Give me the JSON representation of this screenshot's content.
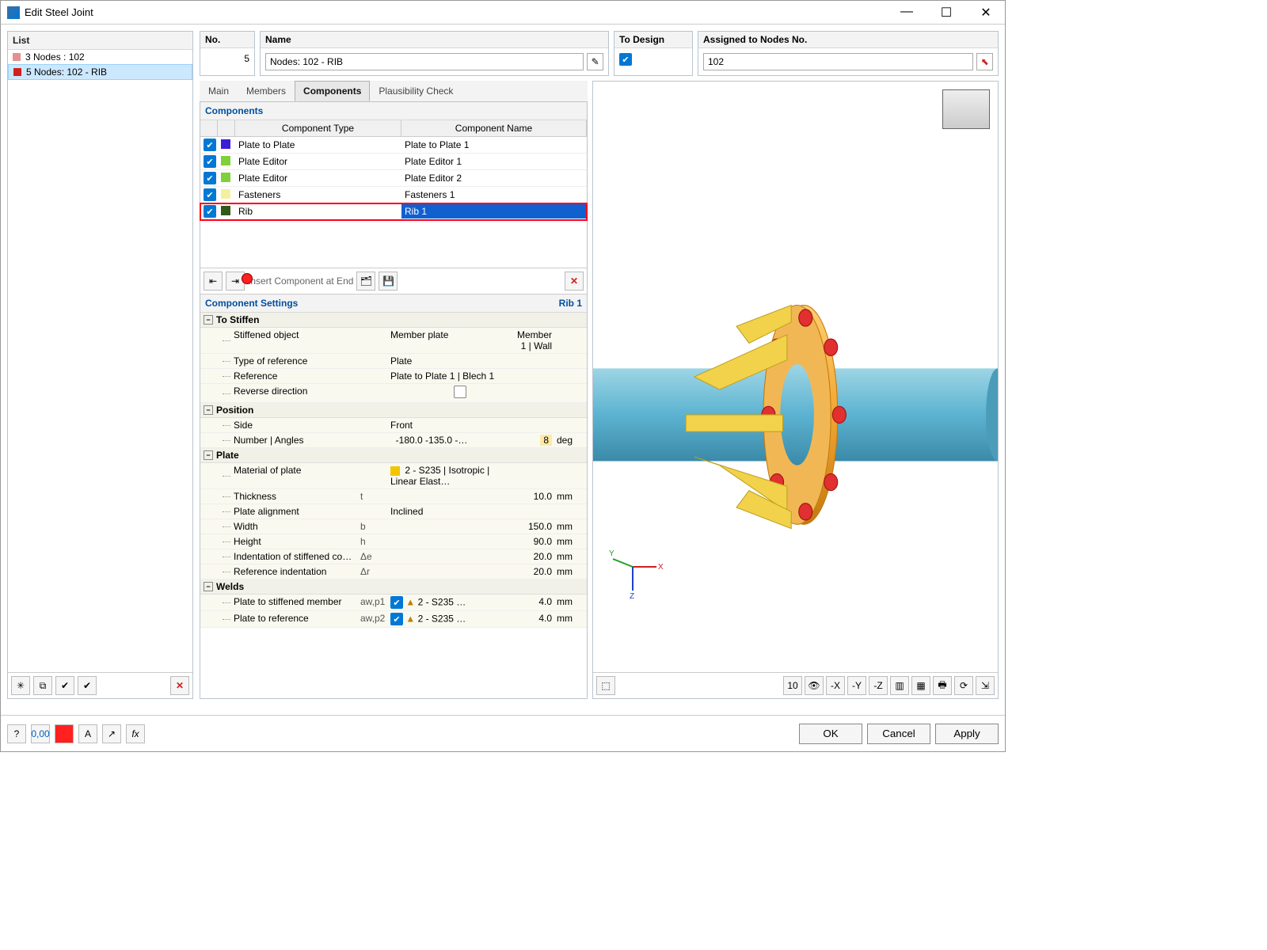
{
  "window": {
    "title": "Edit Steel Joint"
  },
  "list": {
    "header": "List",
    "items": [
      {
        "color": "#e58f8f",
        "label": "3  Nodes : 102",
        "selected": false
      },
      {
        "color": "#d02020",
        "label": "5  Nodes: 102 - RIB",
        "selected": true
      }
    ]
  },
  "header_fields": {
    "no": {
      "label": "No.",
      "value": "5"
    },
    "name": {
      "label": "Name",
      "value": "Nodes: 102 - RIB"
    },
    "todesign": {
      "label": "To Design",
      "checked": true
    },
    "assigned": {
      "label": "Assigned to Nodes No.",
      "value": "102"
    }
  },
  "tabs": [
    "Main",
    "Members",
    "Components",
    "Plausibility Check"
  ],
  "active_tab": 2,
  "components": {
    "title": "Components",
    "columns": {
      "type": "Component Type",
      "name": "Component Name"
    },
    "rows": [
      {
        "checked": true,
        "color": "#3a1ed8",
        "type": "Plate to Plate",
        "name": "Plate to Plate 1",
        "selected": false
      },
      {
        "checked": true,
        "color": "#7fd03a",
        "type": "Plate Editor",
        "name": "Plate Editor 1",
        "selected": false
      },
      {
        "checked": true,
        "color": "#7fd03a",
        "type": "Plate Editor",
        "name": "Plate Editor 2",
        "selected": false
      },
      {
        "checked": true,
        "color": "#f5f0a0",
        "type": "Fasteners",
        "name": "Fasteners 1",
        "selected": false
      },
      {
        "checked": true,
        "color": "#2f5a1a",
        "type": "Rib",
        "name": "Rib 1",
        "selected": true
      }
    ],
    "toolbar_hint": "Insert Component at End"
  },
  "settings": {
    "title": "Component Settings",
    "current": "Rib 1",
    "groups": [
      {
        "name": "To Stiffen",
        "rows": [
          {
            "k": "Stiffened object",
            "sym": "",
            "v1": "Member plate",
            "v2": "Member 1 | Wall",
            "unit": ""
          },
          {
            "k": "Type of reference",
            "sym": "",
            "v1": "Plate",
            "v2": "",
            "unit": ""
          },
          {
            "k": "Reference",
            "sym": "",
            "v1": "Plate to Plate 1 | Blech 1",
            "v2": "",
            "unit": ""
          },
          {
            "k": "Reverse direction",
            "sym": "",
            "v1": "[checkbox]",
            "v2": "",
            "unit": ""
          }
        ]
      },
      {
        "name": "Position",
        "rows": [
          {
            "k": "Side",
            "sym": "",
            "v1": "Front",
            "v2": "",
            "unit": ""
          },
          {
            "k": "Number | Angles",
            "sym": "",
            "v1": "",
            "v2": "8",
            "v2hl": true,
            "extra": "-180.0 -135.0 -…",
            "unit": "deg"
          }
        ]
      },
      {
        "name": "Plate",
        "rows": [
          {
            "k": "Material of plate",
            "sym": "",
            "v1": "[chip] 2 - S235 | Isotropic | Linear Elast…",
            "v2": "",
            "unit": ""
          },
          {
            "k": "Thickness",
            "sym": "t",
            "v1": "",
            "v2": "10.0",
            "unit": "mm"
          },
          {
            "k": "Plate alignment",
            "sym": "",
            "v1": "Inclined",
            "v2": "",
            "unit": ""
          },
          {
            "k": "Width",
            "sym": "b",
            "v1": "",
            "v2": "150.0",
            "unit": "mm"
          },
          {
            "k": "Height",
            "sym": "h",
            "v1": "",
            "v2": "90.0",
            "unit": "mm"
          },
          {
            "k": "Indentation of stiffened co…",
            "sym": "Δe",
            "v1": "",
            "v2": "20.0",
            "unit": "mm"
          },
          {
            "k": "Reference indentation",
            "sym": "Δr",
            "v1": "",
            "v2": "20.0",
            "unit": "mm"
          }
        ]
      },
      {
        "name": "Welds",
        "rows": [
          {
            "k": "Plate to stiffened member",
            "sym": "aw,p1",
            "v1": "[weld] 2 - S235 …",
            "v2": "4.0",
            "unit": "mm"
          },
          {
            "k": "Plate to reference",
            "sym": "aw,p2",
            "v1": "[weld] 2 - S235 …",
            "v2": "4.0",
            "unit": "mm"
          }
        ]
      }
    ]
  },
  "buttons": {
    "ok": "OK",
    "cancel": "Cancel",
    "apply": "Apply"
  },
  "colors": {
    "pipe": "#5cb3d1",
    "pipe_edge": "#3a8aa8",
    "flange": "#f2a531",
    "flange_edge": "#c27a10",
    "bolt": "#e03030",
    "rib": "#f2d24a",
    "rib_edge": "#c0a020"
  }
}
